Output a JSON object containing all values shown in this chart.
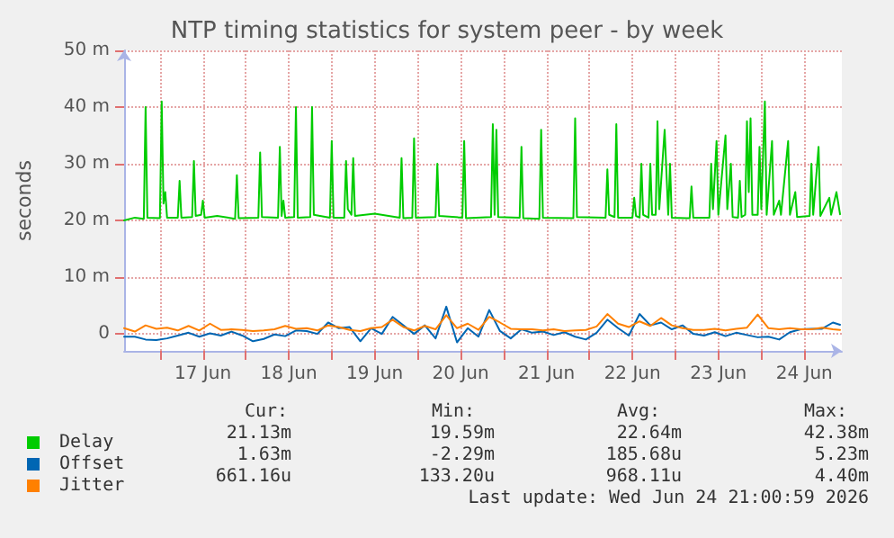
{
  "chart_data": {
    "type": "line",
    "title": "NTP timing statistics for system peer - by week",
    "ylabel": "seconds",
    "xlim": [
      "2026-06-16T14:00",
      "2026-06-24T22:30"
    ],
    "xticks": [
      {
        "value": "2026-06-17T00:00",
        "label": null
      },
      {
        "value": "2026-06-17T12:00",
        "label": "17 Jun"
      },
      {
        "value": "2026-06-18T00:00",
        "label": null
      },
      {
        "value": "2026-06-18T12:00",
        "label": "18 Jun"
      },
      {
        "value": "2026-06-19T00:00",
        "label": null
      },
      {
        "value": "2026-06-19T12:00",
        "label": "19 Jun"
      },
      {
        "value": "2026-06-20T00:00",
        "label": null
      },
      {
        "value": "2026-06-20T12:00",
        "label": "20 Jun"
      },
      {
        "value": "2026-06-21T00:00",
        "label": null
      },
      {
        "value": "2026-06-21T12:00",
        "label": "21 Jun"
      },
      {
        "value": "2026-06-22T00:00",
        "label": null
      },
      {
        "value": "2026-06-22T12:00",
        "label": "22 Jun"
      },
      {
        "value": "2026-06-23T00:00",
        "label": null
      },
      {
        "value": "2026-06-23T12:00",
        "label": "23 Jun"
      },
      {
        "value": "2026-06-24T00:00",
        "label": null
      },
      {
        "value": "2026-06-24T12:00",
        "label": "24 Jun"
      }
    ],
    "ylim": [
      -3,
      50
    ],
    "yticks": [
      0,
      {
        "value": 10,
        "label": "10 m"
      },
      {
        "value": 20,
        "label": "20 m"
      },
      {
        "value": 30,
        "label": "30 m"
      },
      {
        "value": 40,
        "label": "40 m"
      },
      {
        "value": 50,
        "label": "50 m"
      }
    ],
    "grid": true,
    "legend": "bottom left",
    "marker": "none",
    "line_style": "solid",
    "series": [
      {
        "name": "Delay",
        "color": "#00cc00",
        "x": [
          "2026-06-16T14:00",
          "2026-06-16T17:00",
          "2026-06-16T19:30",
          "2026-06-16T20:00",
          "2026-06-16T20:30",
          "2026-06-17T00:00",
          "2026-06-17T00:30",
          "2026-06-17T01:00",
          "2026-06-17T01:30",
          "2026-06-17T02:00",
          "2026-06-17T05:00",
          "2026-06-17T05:30",
          "2026-06-17T06:00",
          "2026-06-17T09:00",
          "2026-06-17T09:30",
          "2026-06-17T10:00",
          "2026-06-17T11:30",
          "2026-06-17T12:00",
          "2026-06-17T12:30",
          "2026-06-17T16:00",
          "2026-06-17T21:00",
          "2026-06-17T21:30",
          "2026-06-17T22:00",
          "2026-06-18T03:30",
          "2026-06-18T04:00",
          "2026-06-18T04:30",
          "2026-06-18T09:00",
          "2026-06-18T09:30",
          "2026-06-18T10:00",
          "2026-06-18T10:30",
          "2026-06-18T11:00",
          "2026-06-18T13:30",
          "2026-06-18T14:00",
          "2026-06-18T14:30",
          "2026-06-18T18:00",
          "2026-06-18T18:30",
          "2026-06-18T19:00",
          "2026-06-18T23:30",
          "2026-06-19T00:00",
          "2026-06-19T00:30",
          "2026-06-19T03:30",
          "2026-06-19T04:00",
          "2026-06-19T04:30",
          "2026-06-19T05:30",
          "2026-06-19T06:00",
          "2026-06-19T06:30",
          "2026-06-19T12:00",
          "2026-06-19T19:00",
          "2026-06-19T19:30",
          "2026-06-19T20:00",
          "2026-06-19T22:30",
          "2026-06-19T23:00",
          "2026-06-19T23:30",
          "2026-06-20T05:00",
          "2026-06-20T05:30",
          "2026-06-20T06:00",
          "2026-06-20T12:30",
          "2026-06-20T13:00",
          "2026-06-20T13:30",
          "2026-06-20T20:30",
          "2026-06-20T21:00",
          "2026-06-20T21:30",
          "2026-06-20T22:00",
          "2026-06-20T22:30",
          "2026-06-21T04:30",
          "2026-06-21T05:00",
          "2026-06-21T05:30",
          "2026-06-21T10:00",
          "2026-06-21T10:30",
          "2026-06-21T11:00",
          "2026-06-21T19:30",
          "2026-06-21T20:00",
          "2026-06-21T20:30",
          "2026-06-22T04:30",
          "2026-06-22T05:00",
          "2026-06-22T05:30",
          "2026-06-22T07:00",
          "2026-06-22T07:30",
          "2026-06-22T08:00",
          "2026-06-22T12:00",
          "2026-06-22T12:30",
          "2026-06-22T13:00",
          "2026-06-22T14:00",
          "2026-06-22T14:30",
          "2026-06-22T15:00",
          "2026-06-22T16:30",
          "2026-06-22T17:00",
          "2026-06-22T17:30",
          "2026-06-22T18:30",
          "2026-06-22T19:00",
          "2026-06-22T19:30",
          "2026-06-22T21:00",
          "2026-06-22T22:00",
          "2026-06-22T22:30",
          "2026-06-22T23:00",
          "2026-06-23T04:00",
          "2026-06-23T04:30",
          "2026-06-23T05:00",
          "2026-06-23T09:30",
          "2026-06-23T10:00",
          "2026-06-23T10:30",
          "2026-06-23T11:30",
          "2026-06-23T12:00",
          "2026-06-23T14:00",
          "2026-06-23T14:30",
          "2026-06-23T15:30",
          "2026-06-23T16:00",
          "2026-06-23T17:30",
          "2026-06-23T18:00",
          "2026-06-23T18:30",
          "2026-06-23T19:30",
          "2026-06-23T20:00",
          "2026-06-23T20:30",
          "2026-06-23T21:00",
          "2026-06-23T21:30",
          "2026-06-23T23:00",
          "2026-06-23T23:30",
          "2026-06-24T00:00",
          "2026-06-24T01:00",
          "2026-06-24T01:30",
          "2026-06-24T03:00",
          "2026-06-24T03:30",
          "2026-06-24T05:00",
          "2026-06-24T05:30",
          "2026-06-24T07:30",
          "2026-06-24T08:00",
          "2026-06-24T09:30",
          "2026-06-24T10:00",
          "2026-06-24T13:30",
          "2026-06-24T14:00",
          "2026-06-24T14:30",
          "2026-06-24T16:00",
          "2026-06-24T16:30",
          "2026-06-24T19:00",
          "2026-06-24T19:30",
          "2026-06-24T21:00",
          "2026-06-24T22:00"
        ],
        "values": [
          20,
          20.5,
          20.3,
          40,
          20.5,
          20.4,
          41,
          23,
          25,
          20.5,
          20.5,
          27,
          20.5,
          20.6,
          30.5,
          20.8,
          21,
          23.5,
          20.5,
          20.8,
          20.3,
          28,
          20.4,
          20.5,
          32,
          20.6,
          20.5,
          33,
          20.8,
          23.5,
          20.5,
          20.6,
          40,
          20.5,
          20.6,
          40,
          21,
          20.5,
          34,
          20.5,
          20.5,
          30.5,
          22,
          21,
          31,
          20.8,
          21.2,
          20.5,
          31,
          20.4,
          20.5,
          34.5,
          20.5,
          20.6,
          30,
          20.8,
          20.5,
          34,
          20.4,
          20.6,
          37,
          21,
          36,
          20.6,
          20.5,
          33,
          20.4,
          20.3,
          36,
          20.5,
          20.4,
          38,
          20.6,
          20.5,
          29,
          21,
          20.6,
          37,
          20.5,
          20.5,
          24,
          20.8,
          20.5,
          30,
          21,
          20.5,
          30,
          21,
          21,
          37.5,
          22,
          36,
          21,
          30,
          20.5,
          20.4,
          26,
          20.5,
          20.5,
          30,
          22,
          34,
          21,
          35,
          22,
          30,
          20.6,
          20.5,
          27,
          20.6,
          21,
          37.5,
          25,
          38,
          21,
          21,
          33,
          22,
          41,
          21,
          34,
          21,
          23.5,
          21,
          34,
          21,
          25,
          20.6,
          20.8,
          30,
          21,
          33,
          20.8,
          24,
          21,
          25,
          21.1
        ]
      },
      {
        "name": "Offset",
        "color": "#0066b3",
        "x": [
          "2026-06-16T14:00",
          "2026-06-16T17:00",
          "2026-06-16T20:00",
          "2026-06-16T23:00",
          "2026-06-17T02:00",
          "2026-06-17T05:00",
          "2026-06-17T08:00",
          "2026-06-17T11:00",
          "2026-06-17T14:00",
          "2026-06-17T17:00",
          "2026-06-17T20:00",
          "2026-06-17T23:00",
          "2026-06-18T02:00",
          "2026-06-18T05:00",
          "2026-06-18T08:00",
          "2026-06-18T11:00",
          "2026-06-18T14:00",
          "2026-06-18T17:00",
          "2026-06-18T20:00",
          "2026-06-18T23:00",
          "2026-06-19T02:00",
          "2026-06-19T05:00",
          "2026-06-19T08:00",
          "2026-06-19T11:00",
          "2026-06-19T14:00",
          "2026-06-19T17:00",
          "2026-06-19T20:00",
          "2026-06-19T23:00",
          "2026-06-20T02:00",
          "2026-06-20T05:00",
          "2026-06-20T08:00",
          "2026-06-20T11:00",
          "2026-06-20T14:00",
          "2026-06-20T17:00",
          "2026-06-20T20:00",
          "2026-06-20T23:00",
          "2026-06-21T02:00",
          "2026-06-21T05:00",
          "2026-06-21T08:00",
          "2026-06-21T11:00",
          "2026-06-21T14:00",
          "2026-06-21T17:00",
          "2026-06-21T20:00",
          "2026-06-21T23:00",
          "2026-06-22T02:00",
          "2026-06-22T05:00",
          "2026-06-22T08:00",
          "2026-06-22T11:00",
          "2026-06-22T14:00",
          "2026-06-22T17:00",
          "2026-06-22T20:00",
          "2026-06-22T23:00",
          "2026-06-23T02:00",
          "2026-06-23T05:00",
          "2026-06-23T08:00",
          "2026-06-23T11:00",
          "2026-06-23T14:00",
          "2026-06-23T17:00",
          "2026-06-23T20:00",
          "2026-06-23T23:00",
          "2026-06-24T02:00",
          "2026-06-24T05:00",
          "2026-06-24T08:00",
          "2026-06-24T11:00",
          "2026-06-24T14:00",
          "2026-06-24T17:00",
          "2026-06-24T20:00",
          "2026-06-24T22:00"
        ],
        "values": [
          -0.5,
          -0.5,
          -1,
          -1.1,
          -0.8,
          -0.3,
          0.2,
          -0.5,
          0.1,
          -0.3,
          0.4,
          -0.3,
          -1.3,
          -0.9,
          -0.1,
          -0.4,
          0.6,
          0.5,
          0,
          2,
          1,
          1.2,
          -1.3,
          1,
          0,
          3,
          1.5,
          0,
          1.5,
          -0.8,
          4.8,
          -1.5,
          1,
          -0.5,
          4.2,
          0.5,
          -0.8,
          0.8,
          0.2,
          0.4,
          -0.2,
          0.3,
          -0.5,
          -1,
          0.2,
          2.5,
          1,
          -0.3,
          3.5,
          1.5,
          2,
          0.8,
          1.5,
          0,
          -0.3,
          0.3,
          -0.4,
          0.2,
          -0.2,
          -0.6,
          -0.5,
          -1,
          0.3,
          0.8,
          0.9,
          0.9,
          2,
          1.6
        ]
      },
      {
        "name": "Jitter",
        "color": "#ff8000",
        "x": [
          "2026-06-16T14:00",
          "2026-06-16T17:00",
          "2026-06-16T20:00",
          "2026-06-16T23:00",
          "2026-06-17T02:00",
          "2026-06-17T05:00",
          "2026-06-17T08:00",
          "2026-06-17T11:00",
          "2026-06-17T14:00",
          "2026-06-17T17:00",
          "2026-06-17T20:00",
          "2026-06-17T23:00",
          "2026-06-18T02:00",
          "2026-06-18T05:00",
          "2026-06-18T08:00",
          "2026-06-18T11:00",
          "2026-06-18T14:00",
          "2026-06-18T17:00",
          "2026-06-18T20:00",
          "2026-06-18T23:00",
          "2026-06-19T02:00",
          "2026-06-19T05:00",
          "2026-06-19T08:00",
          "2026-06-19T11:00",
          "2026-06-19T14:00",
          "2026-06-19T17:00",
          "2026-06-19T20:00",
          "2026-06-19T23:00",
          "2026-06-20T02:00",
          "2026-06-20T05:00",
          "2026-06-20T08:00",
          "2026-06-20T11:00",
          "2026-06-20T14:00",
          "2026-06-20T17:00",
          "2026-06-20T20:00",
          "2026-06-20T23:00",
          "2026-06-21T02:00",
          "2026-06-21T05:00",
          "2026-06-21T08:00",
          "2026-06-21T11:00",
          "2026-06-21T14:00",
          "2026-06-21T17:00",
          "2026-06-21T20:00",
          "2026-06-21T23:00",
          "2026-06-22T02:00",
          "2026-06-22T05:00",
          "2026-06-22T08:00",
          "2026-06-22T11:00",
          "2026-06-22T14:00",
          "2026-06-22T17:00",
          "2026-06-22T20:00",
          "2026-06-22T23:00",
          "2026-06-23T02:00",
          "2026-06-23T05:00",
          "2026-06-23T08:00",
          "2026-06-23T11:00",
          "2026-06-23T14:00",
          "2026-06-23T17:00",
          "2026-06-23T20:00",
          "2026-06-23T23:00",
          "2026-06-24T02:00",
          "2026-06-24T05:00",
          "2026-06-24T08:00",
          "2026-06-24T11:00",
          "2026-06-24T14:00",
          "2026-06-24T17:00",
          "2026-06-24T20:00",
          "2026-06-24T22:00"
        ],
        "values": [
          1,
          0.4,
          1.5,
          0.9,
          1.1,
          0.6,
          1.4,
          0.6,
          1.8,
          0.7,
          0.8,
          0.7,
          0.5,
          0.6,
          0.8,
          1.4,
          0.9,
          1,
          0.6,
          1.5,
          1.2,
          0.7,
          0.5,
          1,
          1.2,
          2.5,
          1.2,
          0.6,
          1.4,
          0.8,
          3.3,
          1,
          1.8,
          0.7,
          3,
          2,
          0.9,
          0.8,
          0.8,
          0.6,
          0.8,
          0.5,
          0.6,
          0.7,
          1.3,
          3.5,
          1.8,
          1.2,
          2.2,
          1.4,
          2.8,
          1.5,
          1,
          0.7,
          0.7,
          0.9,
          0.6,
          0.9,
          1.1,
          3.4,
          1,
          0.8,
          1,
          0.8,
          0.8,
          1.1,
          0.8,
          0.7
        ]
      }
    ],
    "annotations": [
      "Cur:",
      "Min:",
      "Avg:",
      "Max:",
      "21.13m",
      "19.59m",
      "22.64m",
      "42.38m",
      "1.63m",
      "-2.29m",
      "185.68u",
      "5.23m",
      "661.16u",
      "133.20u",
      "968.11u",
      "4.40m",
      "Last update: Wed Jun 24 21:00:59 2026"
    ]
  }
}
